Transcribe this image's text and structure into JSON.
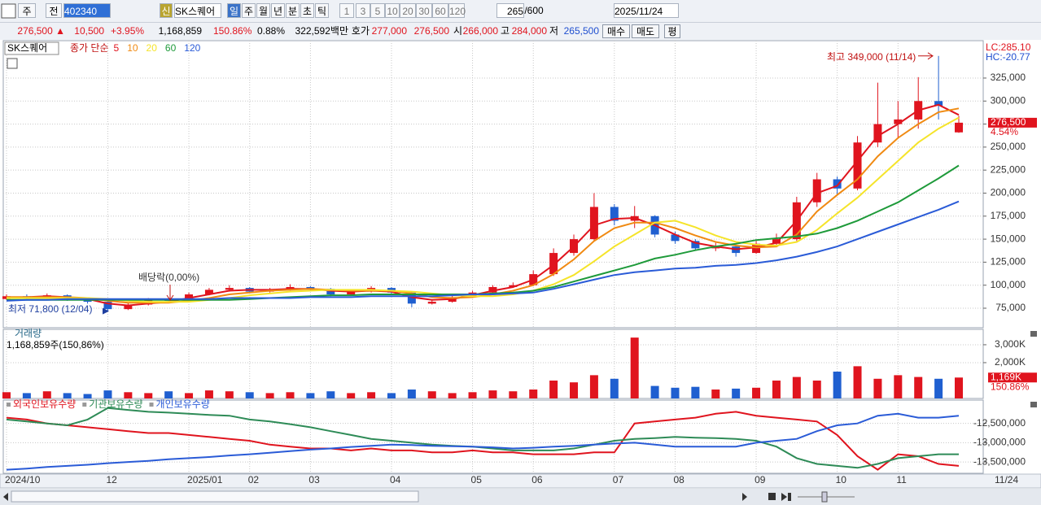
{
  "toolbar": {
    "items": [
      "주",
      "전",
      "402340",
      "신",
      "SK스퀘어",
      "일",
      "주",
      "월",
      "년",
      "분",
      "초",
      "틱",
      "1",
      "3",
      "5",
      "10",
      "20",
      "30",
      "60",
      "120",
      "265",
      "/600",
      "2025/11/24"
    ]
  },
  "info_bar": {
    "items": [
      {
        "text": "276,500 ▲",
        "color": "#e0141e"
      },
      {
        "text": "10,500",
        "color": "#e0141e"
      },
      {
        "text": "+3.95%",
        "color": "#e0141e"
      },
      {
        "text": "1,168,859",
        "color": "#000000"
      },
      {
        "text": "150.86%",
        "color": "#e0141e"
      },
      {
        "text": "0.88%",
        "color": "#000000"
      },
      {
        "text": "322,592백만",
        "color": "#000000"
      },
      {
        "text": "호가",
        "color": "#000000"
      },
      {
        "text": "277,000",
        "color": "#e0141e"
      },
      {
        "text": "276,500",
        "color": "#e0141e"
      },
      {
        "text": "시",
        "color": "#000000"
      },
      {
        "text": "266,000",
        "color": "#e0141e"
      },
      {
        "text": "고",
        "color": "#000000"
      },
      {
        "text": "284,000",
        "color": "#e0141e"
      },
      {
        "text": "저",
        "color": "#000000"
      },
      {
        "text": "265,500",
        "color": "#1f4fd0"
      },
      {
        "text": "매수",
        "color": "#000000"
      },
      {
        "text": "매도",
        "color": "#000000"
      },
      {
        "text": "평",
        "color": "#000000"
      }
    ]
  },
  "x_axis": {
    "categories": [
      "2024/10",
      null,
      null,
      null,
      null,
      "12",
      null,
      null,
      null,
      "2025/01",
      null,
      null,
      "02",
      null,
      null,
      "03",
      null,
      null,
      null,
      "04",
      null,
      null,
      null,
      "05",
      null,
      null,
      "06",
      null,
      null,
      null,
      "07",
      null,
      null,
      "08",
      null,
      null,
      null,
      "09",
      null,
      null,
      null,
      "10",
      null,
      null,
      "11",
      null,
      null,
      null
    ],
    "last_label": "11/24"
  },
  "price_chart": {
    "type": "candlestick",
    "title": "SK스퀘어",
    "legend_label": "종가 단순",
    "up_color": "#e0141e",
    "down_color": "#1f5fd0",
    "open": [
      85000,
      88000,
      87000,
      89000,
      84000,
      82000,
      74000,
      79000,
      84000,
      83000,
      90000,
      95000,
      97000,
      93000,
      95000,
      98000,
      96000,
      90000,
      93000,
      97000,
      92000,
      80000,
      82000,
      87000,
      92000,
      98000,
      100000,
      112000,
      135000,
      150000,
      185000,
      170000,
      175000,
      155000,
      148000,
      140000,
      142000,
      135000,
      145000,
      150000,
      190000,
      215000,
      205000,
      255000,
      275000,
      280000,
      300000,
      266000
    ],
    "high": [
      90000,
      90000,
      91000,
      90000,
      85000,
      83000,
      81000,
      86000,
      86000,
      92000,
      97000,
      100000,
      98000,
      97000,
      101000,
      99000,
      97000,
      95000,
      99000,
      98000,
      93000,
      84000,
      89000,
      94000,
      100000,
      103000,
      116000,
      140000,
      155000,
      200000,
      188000,
      186000,
      176000,
      158000,
      150000,
      146000,
      144000,
      148000,
      156000,
      196000,
      222000,
      218000,
      262000,
      320000,
      300000,
      326000,
      349000,
      284000
    ],
    "low": [
      84000,
      85000,
      85000,
      83000,
      80000,
      71800,
      73000,
      78000,
      81000,
      82000,
      89000,
      93000,
      91000,
      92000,
      94000,
      94000,
      88000,
      89000,
      92000,
      90000,
      76000,
      79000,
      81000,
      86000,
      91000,
      97000,
      99000,
      110000,
      132000,
      148000,
      165000,
      162000,
      152000,
      145000,
      138000,
      137000,
      131000,
      134000,
      143000,
      148000,
      185000,
      198000,
      203000,
      250000,
      260000,
      270000,
      280000,
      265500
    ],
    "close": [
      88000,
      87000,
      89000,
      84000,
      82000,
      74000,
      79000,
      84000,
      83000,
      90000,
      95000,
      97000,
      93000,
      95000,
      98000,
      96000,
      90000,
      93000,
      97000,
      92000,
      80000,
      82000,
      87000,
      92000,
      98000,
      100000,
      112000,
      135000,
      150000,
      185000,
      170000,
      175000,
      155000,
      148000,
      140000,
      142000,
      135000,
      145000,
      150000,
      190000,
      215000,
      205000,
      255000,
      275000,
      280000,
      300000,
      295000,
      276500
    ],
    "series": [
      {
        "name": "5",
        "color": "#e0141e",
        "values": [
          87000,
          87000,
          88000,
          87000,
          85000,
          80000,
          78000,
          80000,
          82000,
          86000,
          90000,
          94000,
          95000,
          95000,
          96000,
          96000,
          94000,
          93000,
          94000,
          93000,
          87000,
          84000,
          85000,
          89000,
          94000,
          98000,
          106000,
          122000,
          142000,
          165000,
          172000,
          173000,
          165000,
          155000,
          146000,
          142000,
          139000,
          141000,
          146000,
          170000,
          200000,
          208000,
          235000,
          262000,
          275000,
          290000,
          296000,
          285000
        ]
      },
      {
        "name": "10",
        "color": "#f08a12",
        "values": [
          87000,
          87000,
          87000,
          87000,
          86000,
          83000,
          81000,
          81000,
          81000,
          83000,
          86000,
          90000,
          92000,
          94000,
          95000,
          96000,
          95000,
          94000,
          94000,
          94000,
          91000,
          87000,
          86000,
          87000,
          90000,
          94000,
          100000,
          112000,
          128000,
          148000,
          162000,
          168000,
          168000,
          162000,
          154000,
          147000,
          143000,
          141000,
          142000,
          155000,
          180000,
          198000,
          215000,
          240000,
          260000,
          275000,
          288000,
          292000
        ]
      },
      {
        "name": "20",
        "color": "#f5e42a",
        "values": [
          86000,
          86000,
          86000,
          86000,
          86000,
          85000,
          83000,
          82000,
          82000,
          82000,
          84000,
          86000,
          89000,
          91000,
          93000,
          94000,
          95000,
          95000,
          95000,
          94000,
          93000,
          91000,
          89000,
          88000,
          88000,
          90000,
          94000,
          101000,
          111000,
          126000,
          142000,
          155000,
          168000,
          170000,
          163000,
          154000,
          147000,
          144000,
          143000,
          147000,
          160000,
          178000,
          195000,
          215000,
          235000,
          255000,
          270000,
          282000
        ]
      },
      {
        "name": "60",
        "color": "#1e9a3a",
        "values": [
          84000,
          84000,
          84000,
          84000,
          84000,
          84000,
          84000,
          84000,
          84000,
          84000,
          84000,
          84000,
          85000,
          86000,
          87000,
          88000,
          89000,
          89000,
          90000,
          90000,
          90000,
          90000,
          90000,
          90000,
          91000,
          92000,
          94000,
          98000,
          104000,
          110000,
          116000,
          122000,
          129000,
          133000,
          138000,
          142000,
          145000,
          149000,
          151000,
          153000,
          156000,
          162000,
          170000,
          180000,
          190000,
          203000,
          216000,
          230000
        ]
      },
      {
        "name": "120",
        "color": "#2a5bd7",
        "values": [
          83000,
          84000,
          84000,
          85000,
          85000,
          85000,
          85000,
          85000,
          85000,
          85000,
          85000,
          86000,
          86000,
          86000,
          86000,
          87000,
          87000,
          87000,
          88000,
          88000,
          88000,
          88000,
          89000,
          90000,
          90000,
          91000,
          92000,
          96000,
          101000,
          106000,
          111000,
          114000,
          116000,
          118000,
          119000,
          121000,
          122000,
          124000,
          127000,
          131000,
          136000,
          142000,
          150000,
          158000,
          166000,
          174000,
          182000,
          191000
        ]
      }
    ],
    "ylim": [
      53800,
      365600
    ],
    "yticks": [
      {
        "value": 75000,
        "label": "75,000"
      },
      {
        "value": 100000,
        "label": "100,000"
      },
      {
        "value": 125000,
        "label": "125,000"
      },
      {
        "value": 150000,
        "label": "150,000"
      },
      {
        "value": 175000,
        "label": "175,000"
      },
      {
        "value": 200000,
        "label": "200,000"
      },
      {
        "value": 225000,
        "label": "225,000"
      },
      {
        "value": 250000,
        "label": "250,000"
      },
      {
        "value": 275000,
        "label": "275,000"
      },
      {
        "value": 300000,
        "label": "300,000"
      },
      {
        "value": 325000,
        "label": "325,000"
      }
    ],
    "grid": true,
    "indicators": [
      {
        "text": "LC:285.10",
        "color": "#e0141e"
      },
      {
        "text": "HC:-20.77",
        "color": "#1f4fd0"
      }
    ],
    "high_note": {
      "text": "최고 349,000 (11/14)",
      "value": 349000
    },
    "low_note": {
      "text": "최저 71,800 (12/04)",
      "value": 71800
    },
    "dividend_note": "배당락(0,00%)",
    "last_price_label": "276,500",
    "last_change_label": "4.54%"
  },
  "volume_chart": {
    "type": "bar",
    "title": "거래량",
    "subtitle": "1,168,859주(150,86%)",
    "values": [
      350000,
      300000,
      400000,
      300000,
      250000,
      450000,
      350000,
      300000,
      400000,
      300000,
      450000,
      400000,
      350000,
      300000,
      350000,
      300000,
      400000,
      300000,
      350000,
      300000,
      500000,
      400000,
      300000,
      350000,
      450000,
      400000,
      500000,
      1000000,
      900000,
      1300000,
      1100000,
      3400000,
      700000,
      600000,
      650000,
      500000,
      550000,
      600000,
      1000000,
      1200000,
      1000000,
      1500000,
      1800000,
      1100000,
      1300000,
      1200000,
      1100000,
      1168859
    ],
    "ylim": [
      0,
      3860000
    ],
    "yticks": [
      {
        "value": 2000000,
        "label": "2,000K"
      },
      {
        "value": 3000000,
        "label": "3,000K"
      }
    ],
    "last_label": "1,169K",
    "last_ratio_label": "150.86%"
  },
  "holdings_chart": {
    "type": "line",
    "series": [
      {
        "name": "외국인보유수량",
        "color": "#e0141e",
        "values": [
          -12350000,
          -12400000,
          -12500000,
          -12550000,
          -12600000,
          -12650000,
          -12700000,
          -12750000,
          -12750000,
          -12800000,
          -12850000,
          -12900000,
          -12950000,
          -13050000,
          -13100000,
          -13150000,
          -13150000,
          -13200000,
          -13150000,
          -13200000,
          -13200000,
          -13250000,
          -13250000,
          -13200000,
          -13250000,
          -13250000,
          -13300000,
          -13300000,
          -13300000,
          -13250000,
          -13250000,
          -12500000,
          -12450000,
          -12400000,
          -12350000,
          -12250000,
          -12200000,
          -12300000,
          -12350000,
          -12400000,
          -12450000,
          -12800000,
          -13350000,
          -13700000,
          -13300000,
          -13350000,
          -13550000,
          -13600000
        ]
      },
      {
        "name": "기관보유수량",
        "color": "#2e8b57",
        "values": [
          -12400000,
          -12450000,
          -12500000,
          -12550000,
          -12400000,
          -12100000,
          -12150000,
          -12200000,
          -12220000,
          -12250000,
          -12280000,
          -12300000,
          -12400000,
          -12450000,
          -12520000,
          -12600000,
          -12700000,
          -12800000,
          -12900000,
          -12950000,
          -13000000,
          -13050000,
          -13080000,
          -13100000,
          -13150000,
          -13200000,
          -13200000,
          -13200000,
          -13150000,
          -13050000,
          -12950000,
          -12900000,
          -12880000,
          -12850000,
          -12870000,
          -12880000,
          -12900000,
          -12950000,
          -13100000,
          -13400000,
          -13550000,
          -13600000,
          -13650000,
          -13550000,
          -13400000,
          -13350000,
          -13300000,
          -13300000
        ]
      },
      {
        "name": "개인보유수량",
        "color": "#2a5bd7",
        "values": [
          -13700000,
          -13670000,
          -13630000,
          -13600000,
          -13570000,
          -13530000,
          -13500000,
          -13470000,
          -13430000,
          -13400000,
          -13370000,
          -13330000,
          -13300000,
          -13260000,
          -13220000,
          -13180000,
          -13150000,
          -13110000,
          -13080000,
          -13050000,
          -13060000,
          -13080000,
          -13090000,
          -13100000,
          -13120000,
          -13150000,
          -13130000,
          -13100000,
          -13080000,
          -13050000,
          -13020000,
          -13000000,
          -13050000,
          -13100000,
          -13100000,
          -13100000,
          -13100000,
          -13000000,
          -12950000,
          -12900000,
          -12700000,
          -12550000,
          -12500000,
          -12300000,
          -12250000,
          -12350000,
          -12350000,
          -12300000
        ]
      }
    ],
    "ylim": [
      -13792000,
      -11896000
    ],
    "yticks": [
      {
        "value": -13500000,
        "label": "-13,500,000"
      },
      {
        "value": -13000000,
        "label": "-13,000,000"
      },
      {
        "value": -12500000,
        "label": "-12,500,000"
      }
    ]
  }
}
